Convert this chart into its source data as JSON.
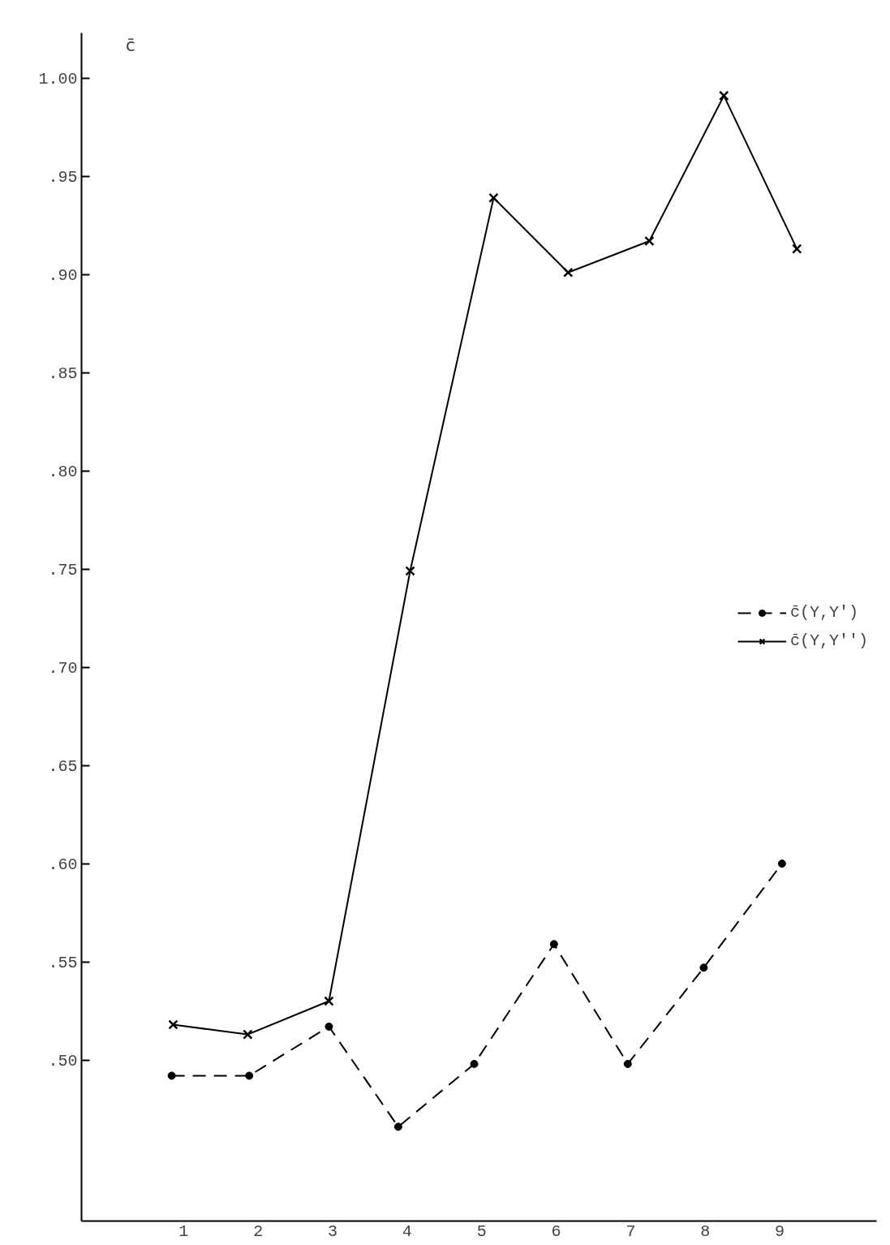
{
  "chart_data": {
    "type": "line",
    "ylabel": "c̄",
    "xlim": [
      -0.37,
      10.3
    ],
    "ylim": [
      0.418,
      1.023
    ],
    "xticks": [
      1,
      2,
      3,
      4,
      5,
      6,
      7,
      8,
      9
    ],
    "yticks": [
      {
        "value": 0.5,
        "label": ".50"
      },
      {
        "value": 0.55,
        "label": ".55"
      },
      {
        "value": 0.6,
        "label": ".60"
      },
      {
        "value": 0.65,
        "label": ".65"
      },
      {
        "value": 0.7,
        "label": ".70"
      },
      {
        "value": 0.75,
        "label": ".75"
      },
      {
        "value": 0.8,
        "label": ".80"
      },
      {
        "value": 0.85,
        "label": ".85"
      },
      {
        "value": 0.9,
        "label": ".90"
      },
      {
        "value": 0.95,
        "label": ".95"
      },
      {
        "value": 1.0,
        "label": "1.00"
      }
    ],
    "grid": false,
    "legend": "right",
    "series": [
      {
        "name": "c̄(Y,Y')",
        "color": "#000000",
        "marker": "circle",
        "line_style": "dashed",
        "x": [
          0.84,
          1.88,
          2.95,
          3.88,
          4.9,
          5.97,
          6.96,
          7.98,
          9.03
        ],
        "values": [
          0.492,
          0.492,
          0.517,
          0.466,
          0.498,
          0.559,
          0.498,
          0.547,
          0.6
        ]
      },
      {
        "name": "c̄(Y,Y'')",
        "color": "#000000",
        "marker": "cross",
        "line_style": "solid",
        "x": [
          0.86,
          1.86,
          2.95,
          4.04,
          5.16,
          6.16,
          7.25,
          8.25,
          9.23
        ],
        "values": [
          0.518,
          0.513,
          0.53,
          0.749,
          0.939,
          0.901,
          0.917,
          0.991,
          0.913
        ]
      }
    ]
  }
}
